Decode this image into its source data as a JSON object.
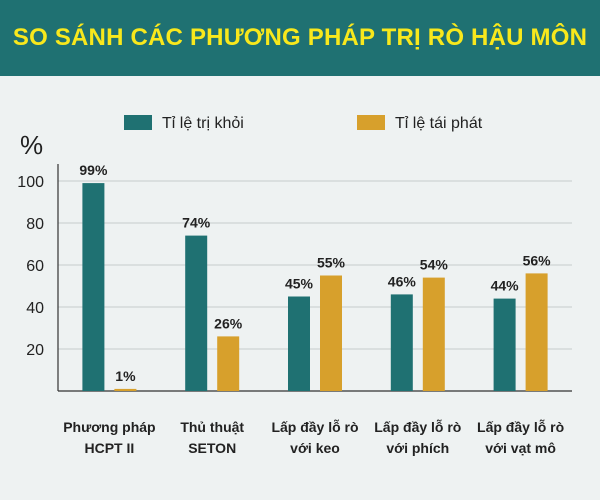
{
  "chart_data": {
    "type": "bar",
    "title": "SO SÁNH CÁC PHƯƠNG PHÁP TRỊ RÒ HẬU MÔN",
    "ylabel": "%",
    "xlabel": "",
    "ylim": [
      0,
      110
    ],
    "yticks": [
      20,
      40,
      60,
      80,
      100
    ],
    "grid": true,
    "legend_position": "top-center",
    "categories": [
      [
        "Phương pháp",
        "HCPT II"
      ],
      [
        "Thủ thuật",
        "SETON"
      ],
      [
        "Lấp đầy lỗ rò",
        "với keo"
      ],
      [
        "Lấp đầy lỗ rò",
        "với phích"
      ],
      [
        "Lấp đầy lỗ rò",
        "với vạt mô"
      ]
    ],
    "series": [
      {
        "name": "Tỉ lệ trị khỏi",
        "color": "#1f7172",
        "values": [
          99,
          74,
          45,
          46,
          44
        ],
        "labels": [
          "99%",
          "74%",
          "45%",
          "46%",
          "44%"
        ]
      },
      {
        "name": "Tỉ lệ tái phát",
        "color": "#d7a02c",
        "values": [
          1,
          26,
          55,
          54,
          56
        ],
        "labels": [
          "1%",
          "26%",
          "55%",
          "54%",
          "56%"
        ]
      }
    ]
  }
}
